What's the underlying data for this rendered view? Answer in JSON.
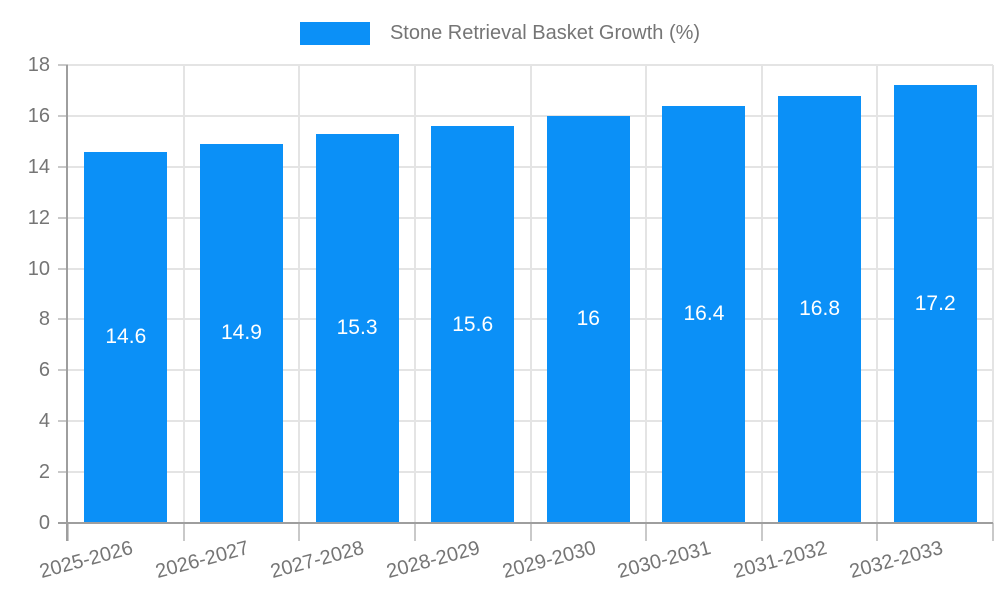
{
  "legend": {
    "label": "Stone Retrieval Basket Growth (%)"
  },
  "colors": {
    "bar": "#0b90f7",
    "value_label": "#ffffff",
    "axis_text": "#757575",
    "gridline": "#e4e4e4",
    "tick": "#c9c9c9",
    "axis_line": "#9e9e9e"
  },
  "chart_data": {
    "type": "bar",
    "title": "",
    "categories": [
      "2025-2026",
      "2026-2027",
      "2027-2028",
      "2028-2029",
      "2029-2030",
      "2030-2031",
      "2031-2032",
      "2032-2033"
    ],
    "series": [
      {
        "name": "Stone Retrieval Basket Growth (%)",
        "values": [
          14.6,
          14.9,
          15.3,
          15.6,
          16,
          16.4,
          16.8,
          17.2
        ],
        "value_labels": [
          "14.6",
          "14.9",
          "15.3",
          "15.6",
          "16",
          "16.4",
          "16.8",
          "17.2"
        ]
      }
    ],
    "xlabel": "",
    "ylabel": "",
    "ylim": [
      0,
      18
    ],
    "yticks": [
      0,
      2,
      4,
      6,
      8,
      10,
      12,
      14,
      16,
      18
    ],
    "grid": true,
    "legend_position": "top-center",
    "x_label_rotation_deg": -15,
    "value_label_position": "inside-center"
  }
}
